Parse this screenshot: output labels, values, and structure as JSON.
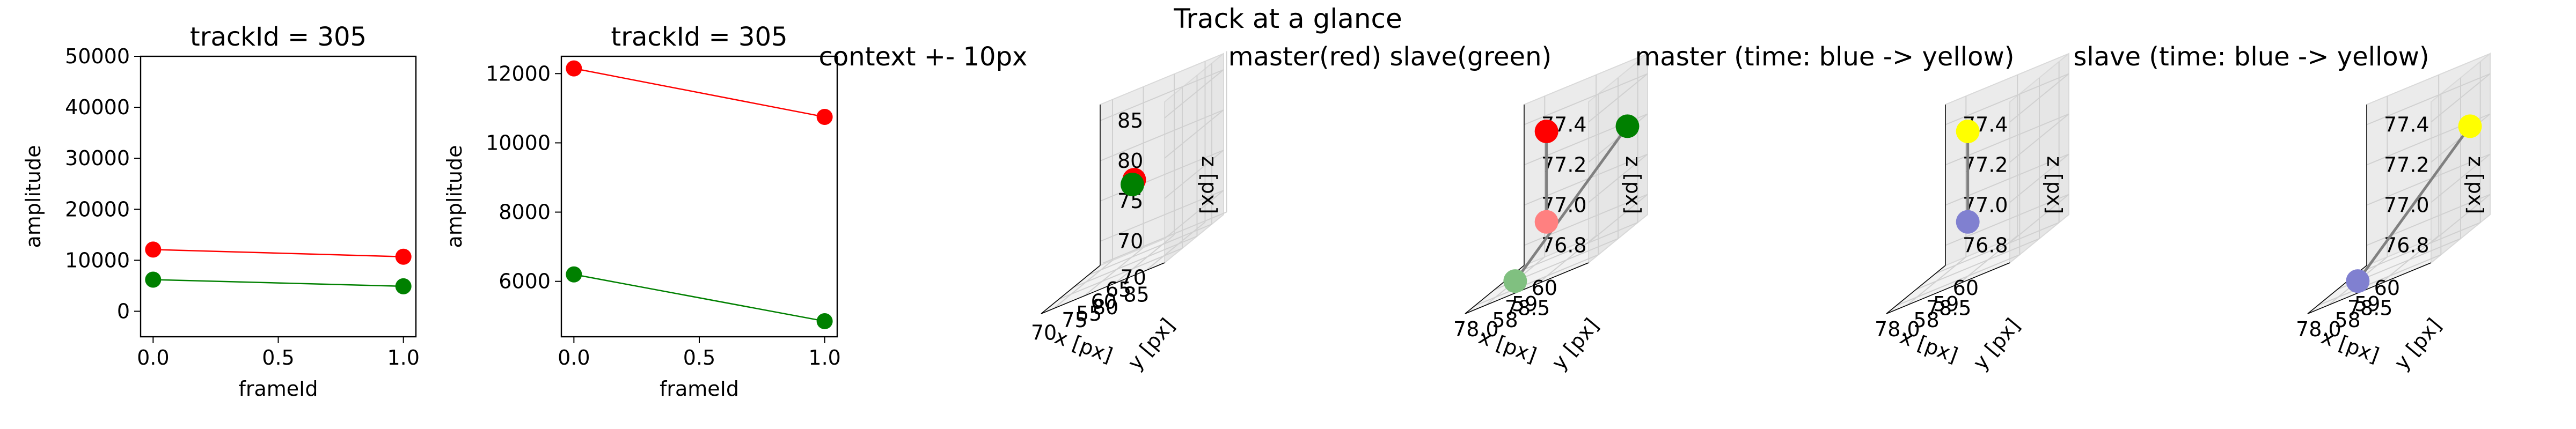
{
  "suptitle": "Track at a glance",
  "chart_data": [
    {
      "type": "line",
      "title": "trackId = 305",
      "xlabel": "frameId",
      "ylabel": "amplitude",
      "xlim": [
        -0.05,
        1.05
      ],
      "ylim": [
        -5000,
        50000
      ],
      "xticks": [
        "0.0",
        "0.5",
        "1.0"
      ],
      "yticks": [
        "0",
        "10000",
        "20000",
        "30000",
        "40000",
        "50000"
      ],
      "x": [
        0,
        1
      ],
      "series": [
        {
          "values": [
            12100,
            10700
          ],
          "color": "#ff0000"
        },
        {
          "values": [
            6200,
            4900
          ],
          "color": "#008000"
        }
      ]
    },
    {
      "type": "line",
      "title": "trackId = 305",
      "xlabel": "frameId",
      "ylabel": "amplitude",
      "xlim": [
        -0.05,
        1.05
      ],
      "ylim": [
        4400,
        12500
      ],
      "xticks": [
        "0.0",
        "0.5",
        "1.0"
      ],
      "yticks": [
        "6000",
        "8000",
        "10000",
        "12000"
      ],
      "x": [
        0,
        1
      ],
      "series": [
        {
          "values": [
            12150,
            10750
          ],
          "color": "#ff0000"
        },
        {
          "values": [
            6200,
            4850
          ],
          "color": "#008000"
        }
      ]
    },
    {
      "type": "scatter",
      "title": "context +- 10px",
      "xlabel": "x [px]",
      "ylabel": "y [px]",
      "zlabel": "z [px]",
      "xlim": [
        68,
        88
      ],
      "ylim": [
        49,
        69
      ],
      "zlim": [
        67,
        87
      ],
      "xticks": [
        "70",
        "75",
        "80",
        "85"
      ],
      "yticks": [
        "55",
        "60",
        "65",
        "70"
      ],
      "zticks": [
        "70",
        "75",
        "80",
        "85"
      ],
      "points": [
        {
          "x": 78.3,
          "y": 59,
          "z": 77.4,
          "color": "#ff0000"
        },
        {
          "x": 78.0,
          "y": 59,
          "z": 76.9,
          "color": "#008000"
        }
      ]
    },
    {
      "type": "scatter",
      "title": "master(red) slave(green)",
      "xlabel": "x [px]",
      "ylabel": "y [px]",
      "zlabel": "z [px]",
      "xlim": [
        77.8,
        79.0
      ],
      "ylim": [
        57.5,
        60.5
      ],
      "zlim": [
        76.7,
        77.5
      ],
      "xticks": [
        "78.0",
        "78.5"
      ],
      "yticks": [
        "58",
        "59",
        "60"
      ],
      "zticks": [
        "76.8",
        "77.0",
        "77.2",
        "77.4"
      ],
      "points": [
        {
          "x": 78.4,
          "y": 58.5,
          "z": 77.4,
          "color": "#ff0000"
        },
        {
          "x": 78.4,
          "y": 58.5,
          "z": 76.95,
          "color": "#ff8080"
        },
        {
          "x": 78.0,
          "y": 59.0,
          "z": 76.7,
          "color": "#80c080"
        },
        {
          "x": 78.9,
          "y": 60.0,
          "z": 77.2,
          "color": "#008000"
        }
      ]
    },
    {
      "type": "scatter",
      "title": "master (time: blue -> yellow)",
      "xlabel": "x [px]",
      "ylabel": "y [px]",
      "zlabel": "z [px]",
      "xlim": [
        77.8,
        79.0
      ],
      "ylim": [
        57.5,
        60.5
      ],
      "zlim": [
        76.7,
        77.5
      ],
      "xticks": [
        "78.0",
        "78.5"
      ],
      "yticks": [
        "58",
        "59",
        "60"
      ],
      "zticks": [
        "76.8",
        "77.0",
        "77.2",
        "77.4"
      ],
      "points": [
        {
          "x": 78.4,
          "y": 58.5,
          "z": 77.4,
          "color": "#ffff00"
        },
        {
          "x": 78.4,
          "y": 58.5,
          "z": 76.95,
          "color": "#8080d0"
        }
      ]
    },
    {
      "type": "scatter",
      "title": "slave (time: blue -> yellow)",
      "xlabel": "x [px]",
      "ylabel": "y [px]",
      "zlabel": "z [px]",
      "xlim": [
        77.8,
        79.0
      ],
      "ylim": [
        57.5,
        60.5
      ],
      "zlim": [
        76.7,
        77.5
      ],
      "xticks": [
        "78.0",
        "78.5"
      ],
      "yticks": [
        "58",
        "59",
        "60"
      ],
      "zticks": [
        "76.8",
        "77.0",
        "77.2",
        "77.4"
      ],
      "points": [
        {
          "x": 78.0,
          "y": 59.0,
          "z": 76.7,
          "color": "#8080d0"
        },
        {
          "x": 78.9,
          "y": 60.0,
          "z": 77.2,
          "color": "#ffff00"
        }
      ]
    }
  ]
}
